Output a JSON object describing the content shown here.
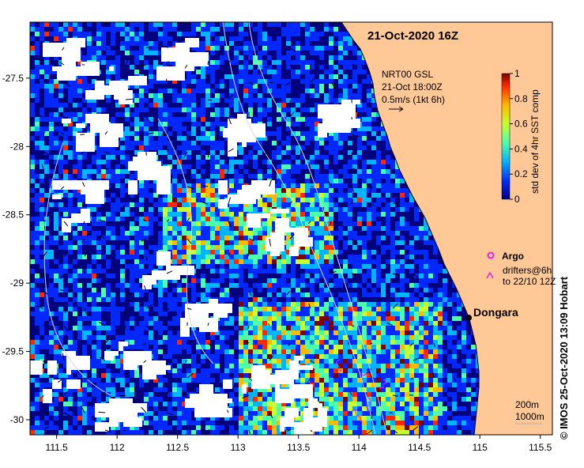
{
  "title": "21-Oct-2020 16Z",
  "velocity_legend": {
    "line1": "NRT00 GSL",
    "line2": "21-Oct 18:00Z",
    "line3": "0.5m/s (1kt 6h)"
  },
  "colorbar": {
    "label": "std dev of 4hr SST comp",
    "ticks": [
      "0",
      "0.2",
      "0.4",
      "0.6",
      "0.8",
      "1"
    ],
    "range": [
      0,
      1
    ],
    "colors": [
      "#00007f",
      "#0028ff",
      "#00b4ff",
      "#4dffa9",
      "#c6ff31",
      "#ffb800",
      "#ff2800",
      "#800000"
    ]
  },
  "legend": {
    "argo_label": "Argo",
    "drifter_line1": "drifters@6h",
    "drifter_line2": "to 22/10 12Z",
    "argo_color": "#e81fe8",
    "drifter_color": "#e81fe8"
  },
  "place": {
    "name": "Dongara",
    "lon": 114.94,
    "lat": -29.25
  },
  "contour_legend": {
    "line1": "200m",
    "line2": "1000m"
  },
  "credit": "© IMOS 25-Oct-2020 13:09 Hobart",
  "axes": {
    "lon_range": [
      111.28,
      115.6
    ],
    "lat_range": [
      -30.11,
      -27.09
    ],
    "x_ticks": [
      "111.5",
      "112",
      "112.5",
      "113",
      "113.5",
      "114",
      "114.5",
      "115",
      "115.5"
    ],
    "y_ticks": [
      "-27.5",
      "-28",
      "-28.5",
      "-29",
      "-29.5",
      "-30"
    ]
  },
  "colors": {
    "land": "#ffc896",
    "cloud": "#ffffff",
    "coast": "#000000",
    "isobath": "#d0d0d0"
  }
}
